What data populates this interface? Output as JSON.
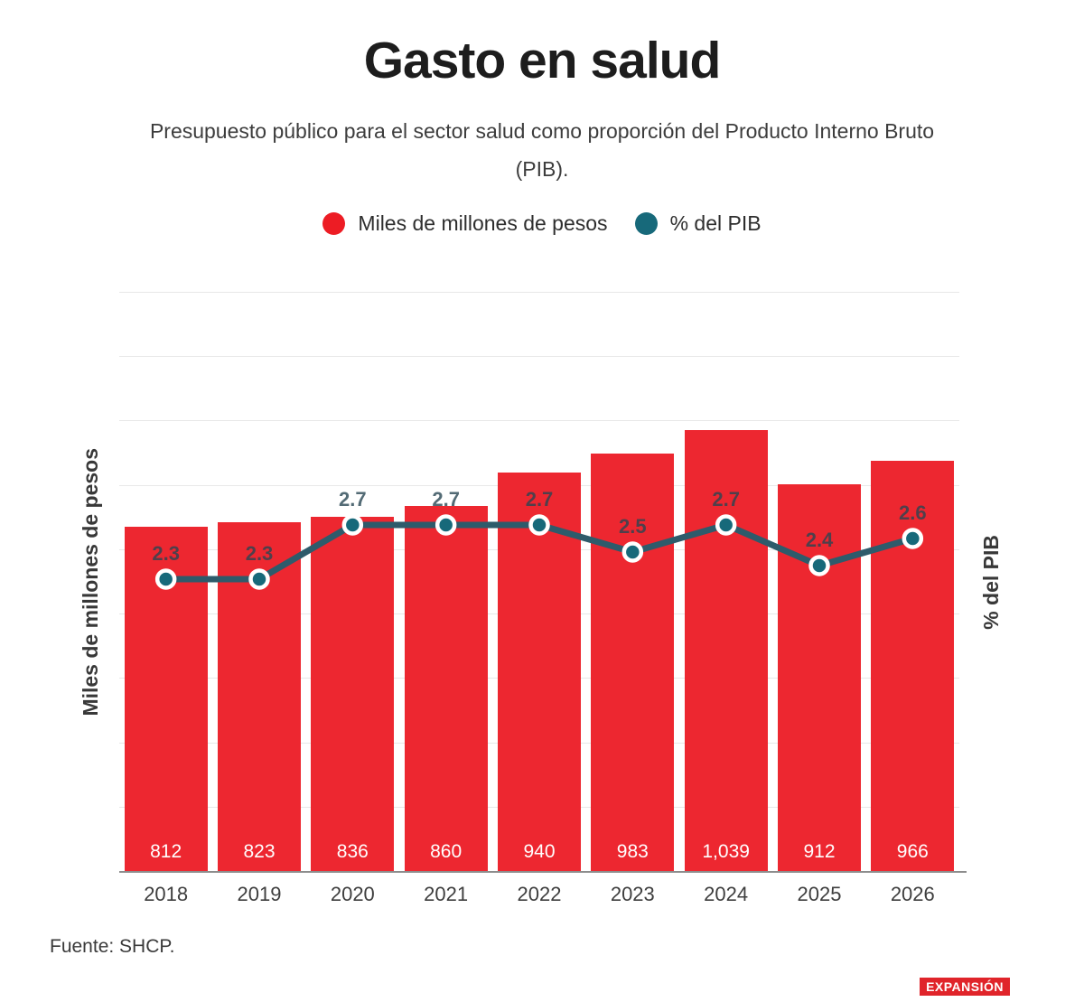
{
  "title": "Gasto en salud",
  "subtitle_lines": [
    "Presupuesto público para el sector salud como proporción del Producto Interno Bruto",
    "(PIB)."
  ],
  "legend": {
    "bars_label": "Miles de millones de pesos",
    "line_label": "% del PIB"
  },
  "footer": {
    "source": "Fuente: SHCP.",
    "brand": "EXPANSIÓN"
  },
  "colors": {
    "bar": "#ed2730",
    "legend_bar_dot": "#ed1c24",
    "line": "#2e5b6b",
    "dot_fill": "#17697a",
    "dot_ring": "#ffffff",
    "value_label_on_bar": "#ffffff",
    "pib_label": "rgba(40,70,82,0.8)",
    "grid": "#e8e8e8",
    "axis": "#8d8d8d",
    "brand_bg": "#e0242a"
  },
  "chart_data": {
    "type": "combo",
    "categories": [
      "2018",
      "2019",
      "2020",
      "2021",
      "2022",
      "2023",
      "2024",
      "2025",
      "2026"
    ],
    "series": [
      {
        "name": "Miles de millones de pesos",
        "type": "bar",
        "axis": "left",
        "values": [
          812,
          823,
          836,
          860,
          940,
          983,
          1039,
          912,
          966
        ],
        "value_labels": [
          "812",
          "823",
          "836",
          "860",
          "940",
          "983",
          "1,039",
          "912",
          "966"
        ]
      },
      {
        "name": "% del PIB",
        "type": "line",
        "axis": "right",
        "values": [
          2.3,
          2.3,
          2.7,
          2.7,
          2.7,
          2.5,
          2.7,
          2.4,
          2.6
        ],
        "value_labels": [
          "2.3",
          "2.3",
          "2.7",
          "2.7",
          "2.7",
          "2.5",
          "2.7",
          "2.4",
          "2.6"
        ]
      }
    ],
    "ylabel_left": "Miles de millones de pesos",
    "ylabel_right": "% del PIB",
    "left_axis": {
      "min": 0,
      "max": 1362
    },
    "right_axis": {
      "min": 0.14,
      "max": 4.413
    },
    "grid_intervals": 9,
    "grid": true,
    "legend_position": "top",
    "value_labels_shown": true
  }
}
